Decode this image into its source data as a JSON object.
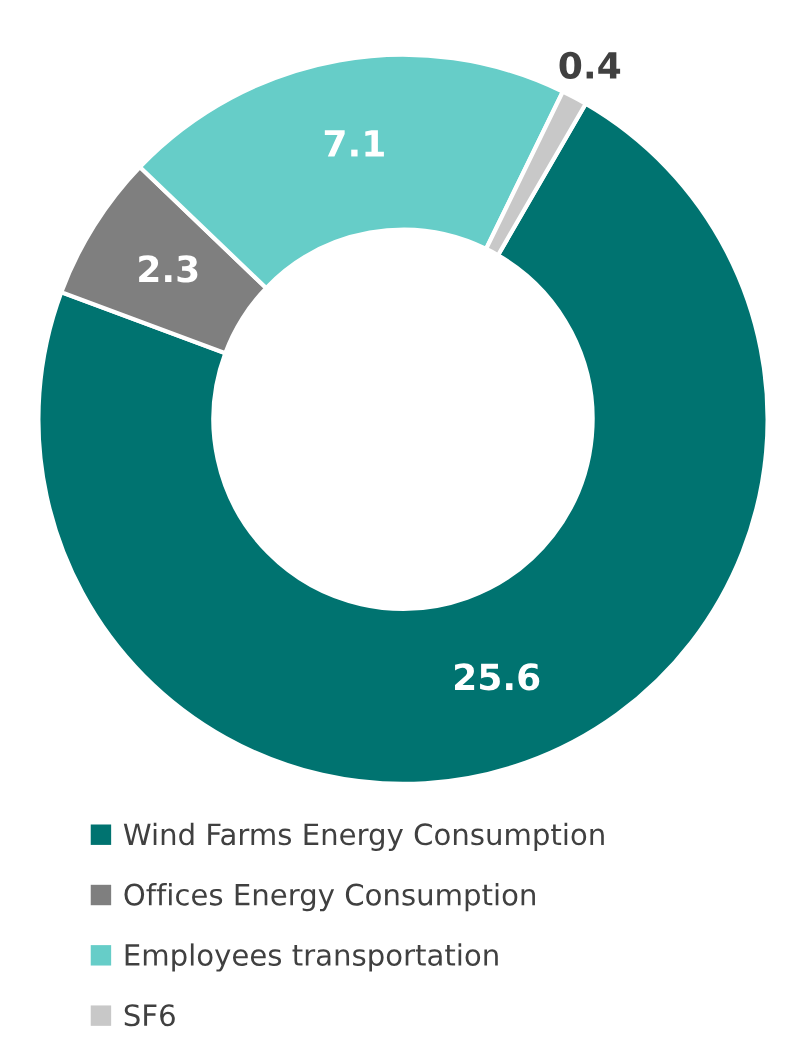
{
  "chart_data": {
    "type": "donut",
    "categories": [
      "Wind Farms Energy Consumption",
      "Offices Energy Consumption",
      "Employees transportation",
      "SF6"
    ],
    "values": [
      25.6,
      2.3,
      7.1,
      0.4
    ],
    "colors": [
      "#007370",
      "#7f7f7f",
      "#66cdc8",
      "#c8c8c8"
    ],
    "data_labels": true,
    "legend": "bottom"
  }
}
